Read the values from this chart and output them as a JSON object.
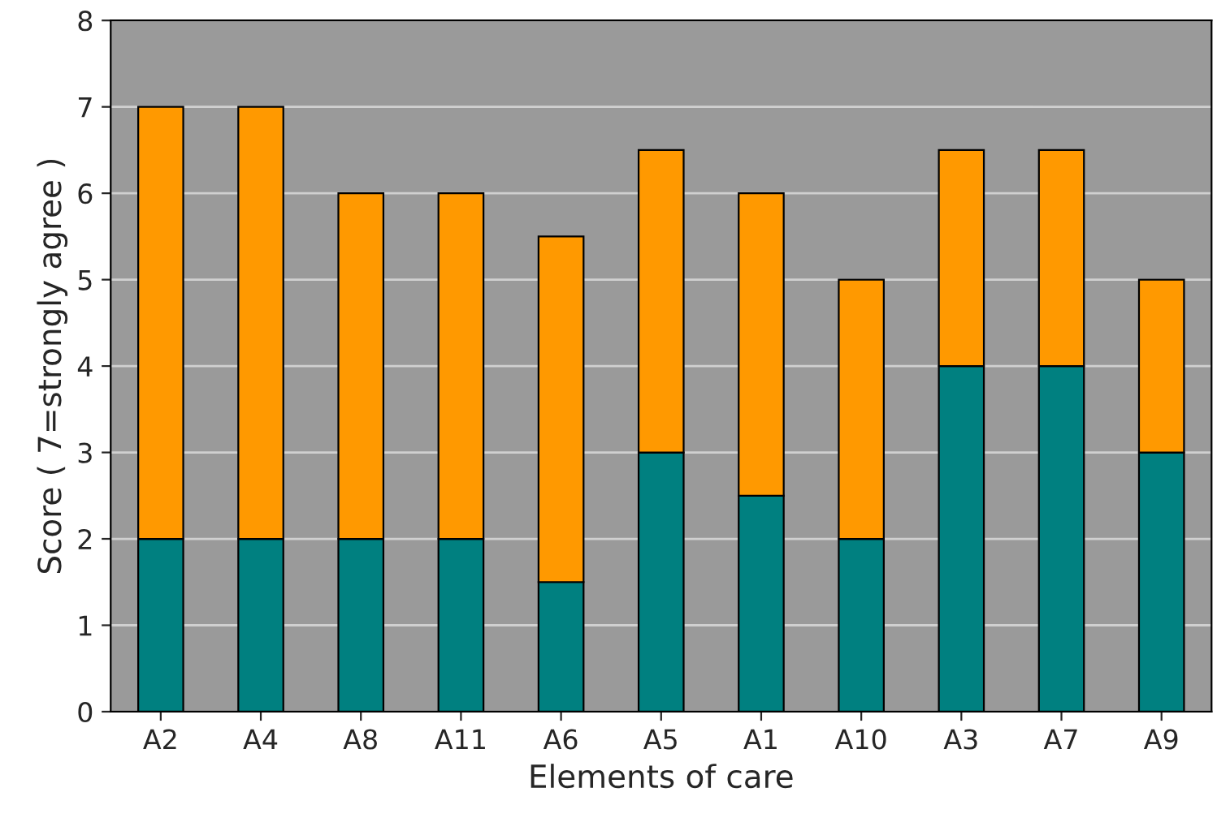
{
  "chart_data": {
    "type": "bar",
    "stacked": true,
    "xlabel": "Elements of care",
    "ylabel": "Score ( 7=strongly agree )",
    "categories": [
      "A2",
      "A4",
      "A8",
      "A11",
      "A6",
      "A5",
      "A1",
      "A10",
      "A3",
      "A7",
      "A9"
    ],
    "series": [
      {
        "color": "#008080",
        "values": [
          2,
          2,
          2,
          2,
          1.5,
          3,
          2.5,
          2,
          4,
          4,
          3
        ]
      },
      {
        "color": "#ff9900",
        "values": [
          5,
          5,
          4,
          4,
          4,
          3.5,
          3.5,
          3,
          2.5,
          2.5,
          2
        ]
      }
    ],
    "ylim": [
      0,
      8
    ],
    "yticks": [
      0,
      1,
      2,
      3,
      4,
      5,
      6,
      7,
      8
    ],
    "grid": "y",
    "legend": false
  }
}
